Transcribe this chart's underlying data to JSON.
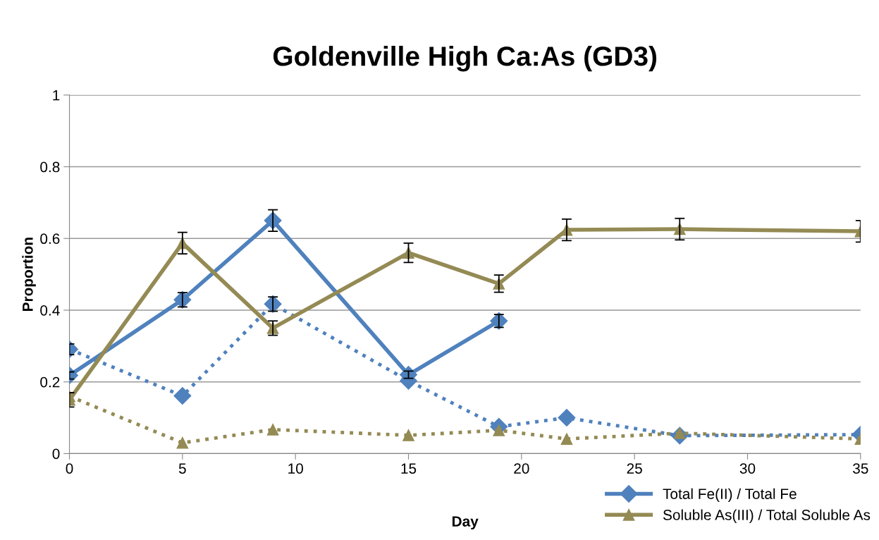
{
  "chart_data": {
    "type": "line",
    "title": "Goldenville High Ca:As (GD3)",
    "xlabel": "Day",
    "ylabel": "Proportion",
    "xlim": [
      0,
      35
    ],
    "xticks": [
      0,
      5,
      10,
      15,
      20,
      25,
      30,
      35
    ],
    "ylim": [
      0,
      1
    ],
    "yticks": [
      0,
      0.2,
      0.4,
      0.6,
      0.8,
      1
    ],
    "grid": "y",
    "legend": "bottom right",
    "series": [
      {
        "name": "Total Fe(II) / Total Fe",
        "color": "#4f81bd",
        "marker": "diamond",
        "line_style": "solid",
        "x": [
          0,
          5,
          9,
          15,
          19
        ],
        "values": [
          0.218,
          0.429,
          0.65,
          0.22,
          0.37
        ],
        "errors": [
          0.01,
          0.02,
          0.03,
          0.01,
          0.018
        ]
      },
      {
        "color": "#4f81bd",
        "marker": "diamond",
        "line_style": "dotted",
        "x": [
          0,
          5,
          9,
          15,
          19,
          22,
          27,
          35
        ],
        "values": [
          0.291,
          0.161,
          0.417,
          0.203,
          0.075,
          0.1,
          0.05,
          0.053
        ],
        "errors": [
          0.015,
          null,
          0.02,
          null,
          null,
          null,
          null,
          null
        ]
      },
      {
        "name": "Soluble As(III) / Total Soluble As",
        "color": "#948a54",
        "marker": "triangle",
        "line_style": "solid",
        "x": [
          0,
          5,
          9,
          15,
          19,
          22,
          27,
          35
        ],
        "values": [
          0.15,
          0.587,
          0.35,
          0.56,
          0.474,
          0.624,
          0.626,
          0.62
        ],
        "errors": [
          0.02,
          0.03,
          0.02,
          0.027,
          0.024,
          0.03,
          0.03,
          0.03
        ]
      },
      {
        "color": "#948a54",
        "marker": "triangle",
        "line_style": "dotted",
        "x": [
          0,
          5,
          9,
          15,
          19,
          22,
          27,
          35
        ],
        "values": [
          0.16,
          0.03,
          0.067,
          0.051,
          0.065,
          0.041,
          0.057,
          0.041
        ]
      }
    ]
  }
}
